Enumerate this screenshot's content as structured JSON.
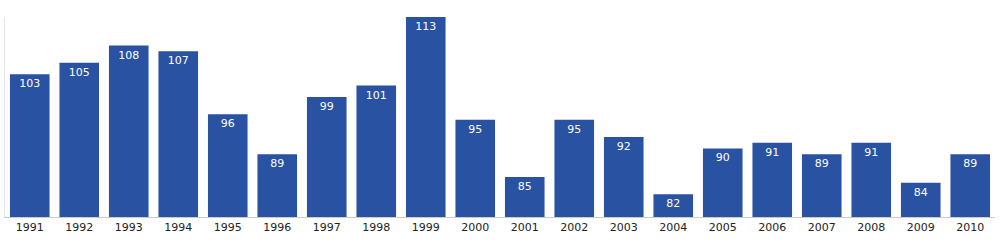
{
  "chart_data": {
    "type": "bar",
    "categories": [
      "1991",
      "1992",
      "1993",
      "1994",
      "1995",
      "1996",
      "1997",
      "1998",
      "1999",
      "2000",
      "2001",
      "2002",
      "2003",
      "2004",
      "2005",
      "2006",
      "2007",
      "2008",
      "2009",
      "2010"
    ],
    "values": [
      103,
      105,
      108,
      107,
      96,
      89,
      99,
      101,
      113,
      95,
      85,
      95,
      92,
      82,
      90,
      91,
      89,
      91,
      84,
      89
    ],
    "color": "#2a52a3",
    "ylim": [
      78,
      113
    ],
    "data_labels": true,
    "tick_labels": "x",
    "grid": false
  }
}
